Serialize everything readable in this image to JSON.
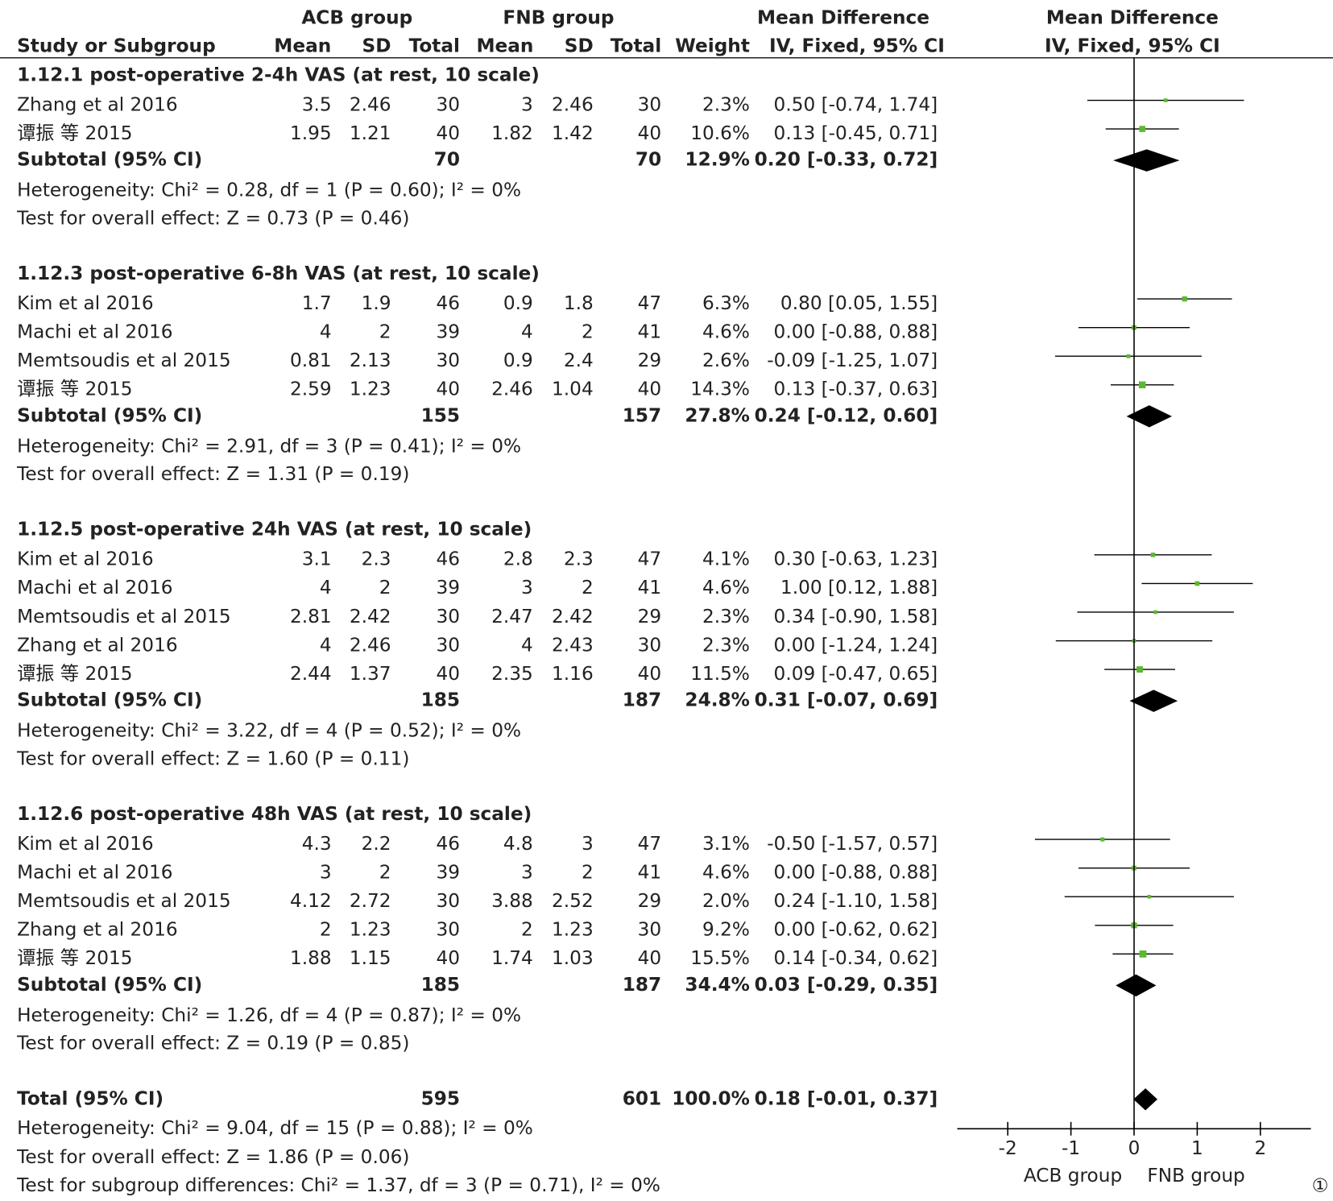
{
  "chart_data": {
    "type": "forest",
    "group_headers": [
      "ACB group",
      "FNB group"
    ],
    "effect_header": "Mean Difference",
    "plot_header": "Mean Difference",
    "columns": [
      "Study or Subgroup",
      "Mean",
      "SD",
      "Total",
      "Mean",
      "SD",
      "Total",
      "Weight",
      "IV, Fixed, 95% CI"
    ],
    "plot_method": "IV, Fixed, 95% CI",
    "marker_color": "#5cb82e",
    "subgroups": [
      {
        "title": "1.12.1 post-operative 2-4h VAS (at rest, 10 scale)",
        "studies": [
          {
            "name": "Zhang et al 2016",
            "acb": [
              3.5,
              2.46,
              30
            ],
            "fnb": [
              3,
              2.46,
              30
            ],
            "weight": 2.3,
            "weight_label": "2.3%",
            "effect": [
              0.5,
              -0.74,
              1.74
            ],
            "effect_label": "0.50 [-0.74, 1.74]"
          },
          {
            "name": "谭振 等 2015",
            "acb": [
              1.95,
              1.21,
              40
            ],
            "fnb": [
              1.82,
              1.42,
              40
            ],
            "weight": 10.6,
            "weight_label": "10.6%",
            "effect": [
              0.13,
              -0.45,
              0.71
            ],
            "effect_label": "0.13 [-0.45, 0.71]"
          }
        ],
        "subtotal": {
          "name": "Subtotal (95% CI)",
          "acb_total": 70,
          "fnb_total": 70,
          "weight": 12.9,
          "weight_label": "12.9%",
          "effect": [
            0.2,
            -0.33,
            0.72
          ],
          "effect_label": "0.20 [-0.33, 0.72]"
        },
        "heterogeneity": "Heterogeneity: Chi² = 0.28, df = 1 (P = 0.60); I² = 0%",
        "overall": "Test for overall effect: Z = 0.73 (P = 0.46)"
      },
      {
        "title": "1.12.3 post-operative 6-8h VAS (at rest, 10 scale)",
        "studies": [
          {
            "name": "Kim et al 2016",
            "acb": [
              1.7,
              1.9,
              46
            ],
            "fnb": [
              0.9,
              1.8,
              47
            ],
            "weight": 6.3,
            "weight_label": "6.3%",
            "effect": [
              0.8,
              0.05,
              1.55
            ],
            "effect_label": "0.80 [0.05, 1.55]"
          },
          {
            "name": "Machi et al 2016",
            "acb": [
              4,
              2,
              39
            ],
            "fnb": [
              4,
              2,
              41
            ],
            "weight": 4.6,
            "weight_label": "4.6%",
            "effect": [
              0,
              -0.88,
              0.88
            ],
            "effect_label": "0.00 [-0.88, 0.88]"
          },
          {
            "name": "Memtsoudis et al 2015",
            "acb": [
              0.81,
              2.13,
              30
            ],
            "fnb": [
              0.9,
              2.4,
              29
            ],
            "weight": 2.6,
            "weight_label": "2.6%",
            "effect": [
              -0.09,
              -1.25,
              1.07
            ],
            "effect_label": "-0.09 [-1.25, 1.07]"
          },
          {
            "name": "谭振 等 2015",
            "acb": [
              2.59,
              1.23,
              40
            ],
            "fnb": [
              2.46,
              1.04,
              40
            ],
            "weight": 14.3,
            "weight_label": "14.3%",
            "effect": [
              0.13,
              -0.37,
              0.63
            ],
            "effect_label": "0.13 [-0.37, 0.63]"
          }
        ],
        "subtotal": {
          "name": "Subtotal (95% CI)",
          "acb_total": 155,
          "fnb_total": 157,
          "weight": 27.8,
          "weight_label": "27.8%",
          "effect": [
            0.24,
            -0.12,
            0.6
          ],
          "effect_label": "0.24 [-0.12, 0.60]"
        },
        "heterogeneity": "Heterogeneity: Chi² = 2.91, df = 3 (P = 0.41); I² = 0%",
        "overall": "Test for overall effect: Z = 1.31 (P = 0.19)"
      },
      {
        "title": "1.12.5 post-operative 24h VAS (at rest, 10 scale)",
        "studies": [
          {
            "name": "Kim et al 2016",
            "acb": [
              3.1,
              2.3,
              46
            ],
            "fnb": [
              2.8,
              2.3,
              47
            ],
            "weight": 4.1,
            "weight_label": "4.1%",
            "effect": [
              0.3,
              -0.63,
              1.23
            ],
            "effect_label": "0.30 [-0.63, 1.23]"
          },
          {
            "name": "Machi et al 2016",
            "acb": [
              4,
              2,
              39
            ],
            "fnb": [
              3,
              2,
              41
            ],
            "weight": 4.6,
            "weight_label": "4.6%",
            "effect": [
              1,
              0.12,
              1.88
            ],
            "effect_label": "1.00 [0.12, 1.88]"
          },
          {
            "name": "Memtsoudis et al 2015",
            "acb": [
              2.81,
              2.42,
              30
            ],
            "fnb": [
              2.47,
              2.42,
              29
            ],
            "weight": 2.3,
            "weight_label": "2.3%",
            "effect": [
              0.34,
              -0.9,
              1.58
            ],
            "effect_label": "0.34 [-0.90, 1.58]"
          },
          {
            "name": "Zhang et al 2016",
            "acb": [
              4,
              2.46,
              30
            ],
            "fnb": [
              4,
              2.43,
              30
            ],
            "weight": 2.3,
            "weight_label": "2.3%",
            "effect": [
              0,
              -1.24,
              1.24
            ],
            "effect_label": "0.00 [-1.24, 1.24]"
          },
          {
            "name": "谭振 等 2015",
            "acb": [
              2.44,
              1.37,
              40
            ],
            "fnb": [
              2.35,
              1.16,
              40
            ],
            "weight": 11.5,
            "weight_label": "11.5%",
            "effect": [
              0.09,
              -0.47,
              0.65
            ],
            "effect_label": "0.09 [-0.47, 0.65]"
          }
        ],
        "subtotal": {
          "name": "Subtotal (95% CI)",
          "acb_total": 185,
          "fnb_total": 187,
          "weight": 24.8,
          "weight_label": "24.8%",
          "effect": [
            0.31,
            -0.07,
            0.69
          ],
          "effect_label": "0.31 [-0.07, 0.69]"
        },
        "heterogeneity": "Heterogeneity: Chi² = 3.22, df = 4 (P = 0.52); I² = 0%",
        "overall": "Test for overall effect: Z = 1.60 (P = 0.11)"
      },
      {
        "title": "1.12.6 post-operative 48h VAS (at rest, 10 scale)",
        "studies": [
          {
            "name": "Kim et al 2016",
            "acb": [
              4.3,
              2.2,
              46
            ],
            "fnb": [
              4.8,
              3,
              47
            ],
            "weight": 3.1,
            "weight_label": "3.1%",
            "effect": [
              -0.5,
              -1.57,
              0.57
            ],
            "effect_label": "-0.50 [-1.57, 0.57]"
          },
          {
            "name": "Machi et al 2016",
            "acb": [
              3,
              2,
              39
            ],
            "fnb": [
              3,
              2,
              41
            ],
            "weight": 4.6,
            "weight_label": "4.6%",
            "effect": [
              0,
              -0.88,
              0.88
            ],
            "effect_label": "0.00 [-0.88, 0.88]"
          },
          {
            "name": "Memtsoudis et al 2015",
            "acb": [
              4.12,
              2.72,
              30
            ],
            "fnb": [
              3.88,
              2.52,
              29
            ],
            "weight": 2.0,
            "weight_label": "2.0%",
            "effect": [
              0.24,
              -1.1,
              1.58
            ],
            "effect_label": "0.24 [-1.10, 1.58]"
          },
          {
            "name": "Zhang et al 2016",
            "acb": [
              2,
              1.23,
              30
            ],
            "fnb": [
              2,
              1.23,
              30
            ],
            "weight": 9.2,
            "weight_label": "9.2%",
            "effect": [
              0,
              -0.62,
              0.62
            ],
            "effect_label": "0.00 [-0.62, 0.62]"
          },
          {
            "name": "谭振 等 2015",
            "acb": [
              1.88,
              1.15,
              40
            ],
            "fnb": [
              1.74,
              1.03,
              40
            ],
            "weight": 15.5,
            "weight_label": "15.5%",
            "effect": [
              0.14,
              -0.34,
              0.62
            ],
            "effect_label": "0.14 [-0.34, 0.62]"
          }
        ],
        "subtotal": {
          "name": "Subtotal (95% CI)",
          "acb_total": 185,
          "fnb_total": 187,
          "weight": 34.4,
          "weight_label": "34.4%",
          "effect": [
            0.03,
            -0.29,
            0.35
          ],
          "effect_label": "0.03 [-0.29, 0.35]"
        },
        "heterogeneity": "Heterogeneity: Chi² = 1.26, df = 4 (P = 0.87); I² = 0%",
        "overall": "Test for overall effect: Z = 0.19 (P = 0.85)"
      }
    ],
    "total": {
      "name": "Total (95% CI)",
      "acb_total": 595,
      "fnb_total": 601,
      "weight": 100,
      "weight_label": "100.0%",
      "effect": [
        0.18,
        -0.01,
        0.37
      ],
      "effect_label": "0.18 [-0.01, 0.37]"
    },
    "total_heterogeneity": "Heterogeneity: Chi² = 9.04, df = 15 (P = 0.88); I² = 0%",
    "total_overall": "Test for overall effect: Z = 1.86 (P = 0.06)",
    "subgroup_differences": "Test for subgroup differences: Chi² = 1.37, df = 3 (P = 0.71), I² = 0%",
    "xlim": [
      -2.8,
      2.8
    ],
    "xticks": [
      -2,
      -1,
      0,
      1,
      2
    ],
    "x_labels": [
      "ACB group",
      "FNB group"
    ],
    "figure_label": "①"
  }
}
